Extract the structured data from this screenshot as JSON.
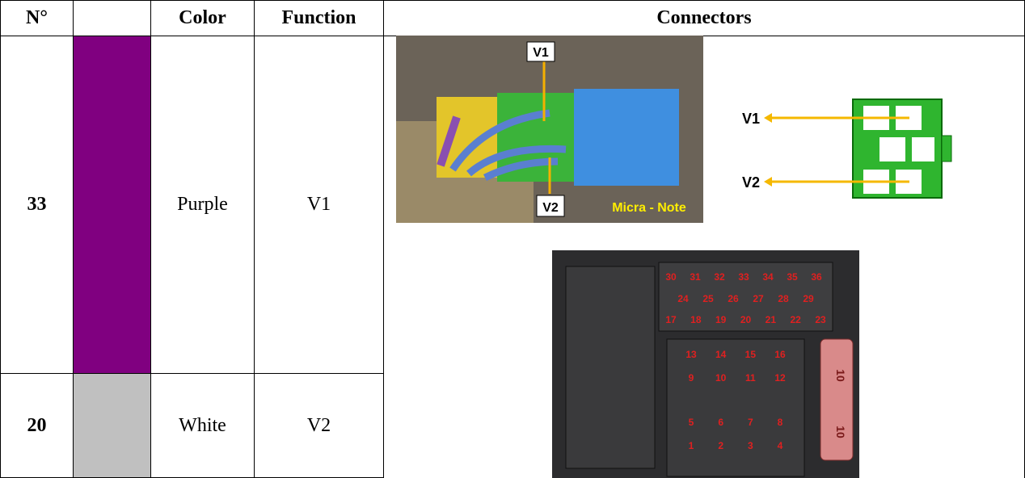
{
  "table": {
    "header": [
      "N°",
      "",
      "Color",
      "Function",
      "Connectors"
    ],
    "rows": [
      [
        "33",
        "",
        "Purple",
        "V1"
      ],
      [
        "20",
        "",
        "White",
        "V2"
      ]
    ],
    "swatches": [
      "#800080",
      "#c0c0c0"
    ]
  },
  "photo": {
    "labels": [
      "V1",
      "V2"
    ],
    "caption": "Micra - Note"
  },
  "diagram": {
    "labels": [
      "V1",
      "V2"
    ]
  },
  "connector_photo": {
    "pin_rows": [
      [
        "30",
        "31",
        "32",
        "33",
        "34",
        "35",
        "36"
      ],
      [
        "24",
        "25",
        "26",
        "27",
        "28",
        "29"
      ],
      [
        "17",
        "18",
        "19",
        "20",
        "21",
        "22",
        "23"
      ],
      [
        "13",
        "14",
        "15",
        "16"
      ],
      [
        "9",
        "10",
        "11",
        "12"
      ],
      [
        "5",
        "6",
        "7",
        "8"
      ],
      [
        "1",
        "2",
        "3",
        "4"
      ]
    ],
    "fuse_labels": [
      "10",
      "10"
    ]
  }
}
